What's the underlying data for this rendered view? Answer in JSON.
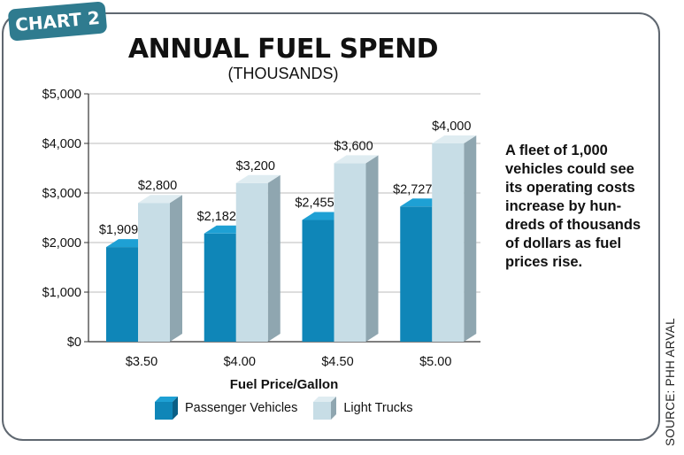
{
  "badge": "CHART 2",
  "note": "A fleet of 1,000 vehicles could see its operating costs increase by hun-dreds of thousands of dollars as fuel prices rise.",
  "source": "SOURCE: PHH ARVAL",
  "colors": {
    "passenger": "#0f86b8",
    "truck": "#c7dde6",
    "axis": "#333333",
    "grid": "#bbbbbb"
  },
  "chart_data": {
    "type": "bar",
    "title": "ANNUAL FUEL SPEND",
    "subtitle": "(THOUSANDS)",
    "xlabel": "Fuel Price/Gallon",
    "ylabel": "",
    "categories": [
      "$3.50",
      "$4.00",
      "$4.50",
      "$5.00"
    ],
    "ylim": [
      0,
      5000
    ],
    "yticks": [
      "$0",
      "$1,000",
      "$2,000",
      "$3,000",
      "$4,000",
      "$5,000"
    ],
    "grid": true,
    "legend": "bottom",
    "series": [
      {
        "name": "Passenger Vehicles",
        "values": [
          1909,
          2182,
          2455,
          2727
        ],
        "labels": [
          "$1,909",
          "$2,182",
          "$2,455",
          "$2,727"
        ]
      },
      {
        "name": "Light Trucks",
        "values": [
          2800,
          3200,
          3600,
          4000
        ],
        "labels": [
          "$2,800",
          "$3,200",
          "$3,600",
          "$4,000"
        ]
      }
    ]
  }
}
